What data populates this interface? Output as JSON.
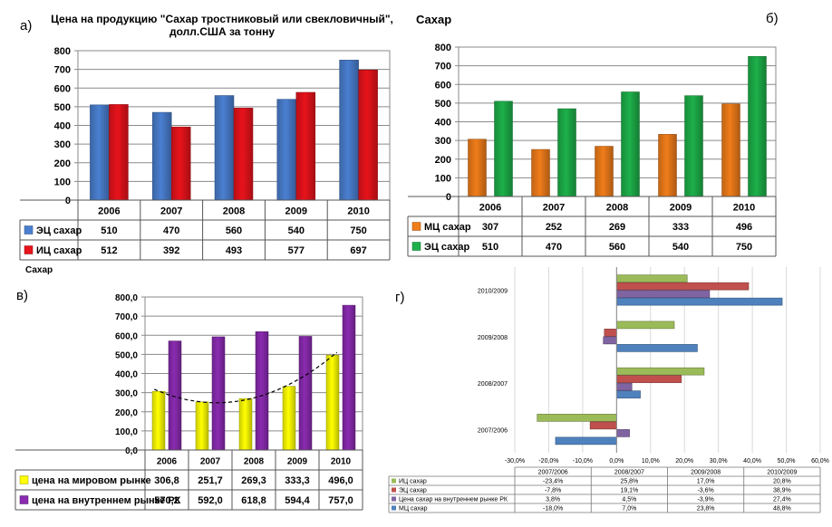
{
  "labels": {
    "a": "а)",
    "b": "б)",
    "v": "в)",
    "g": "г)"
  },
  "chart_data": [
    {
      "id": "a",
      "type": "bar",
      "title_line1": "Цена на продукцию  \"Сахар тростниковый  или свекловичный\",",
      "title_line2": "долл.США за тонну",
      "xlabel": "",
      "ylabel": "",
      "categories": [
        "2006",
        "2007",
        "2008",
        "2009",
        "2010"
      ],
      "ylim": [
        0,
        800
      ],
      "yticks": [
        0,
        100,
        200,
        300,
        400,
        500,
        600,
        700,
        800
      ],
      "ytick_labels": [
        "0",
        "100",
        "200",
        "300",
        "400",
        "500",
        "600",
        "700",
        "800"
      ],
      "grid": true,
      "legend": "data-table",
      "series": [
        {
          "name": "ЭЦ сахар",
          "color": "#4A7FD0",
          "values": [
            510,
            470,
            560,
            540,
            750
          ],
          "labels": [
            "510",
            "470",
            "560",
            "540",
            "750"
          ]
        },
        {
          "name": "ИЦ сахар",
          "color": "#E8131B",
          "values": [
            512,
            392,
            493,
            577,
            697
          ],
          "labels": [
            "512",
            "392",
            "493",
            "577",
            "697"
          ]
        }
      ]
    },
    {
      "id": "b",
      "type": "bar",
      "title_line1": "Сахар",
      "xlabel": "",
      "ylabel": "",
      "categories": [
        "2006",
        "2007",
        "2008",
        "2009",
        "2010"
      ],
      "ylim": [
        0,
        800
      ],
      "yticks": [
        0,
        100,
        200,
        300,
        400,
        500,
        600,
        700,
        800
      ],
      "ytick_labels": [
        "0",
        "100",
        "200",
        "300",
        "400",
        "500",
        "600",
        "700",
        "800"
      ],
      "grid": true,
      "legend": "data-table",
      "series": [
        {
          "name": "МЦ сахар",
          "color": "#F07D1A",
          "values": [
            307,
            252,
            269,
            333,
            496
          ],
          "labels": [
            "307",
            "252",
            "269",
            "333",
            "496"
          ]
        },
        {
          "name": "ЭЦ сахар",
          "color": "#1DB04A",
          "values": [
            510,
            470,
            560,
            540,
            750
          ],
          "labels": [
            "510",
            "470",
            "560",
            "540",
            "750"
          ]
        }
      ]
    },
    {
      "id": "v",
      "type": "bar",
      "title_line1": "Сахар",
      "xlabel": "",
      "ylabel": "",
      "categories": [
        "2006",
        "2007",
        "2008",
        "2009",
        "2010"
      ],
      "ylim": [
        0,
        800
      ],
      "yticks": [
        0,
        100,
        200,
        300,
        400,
        500,
        600,
        700,
        800
      ],
      "ytick_labels": [
        "0,0",
        "100,0",
        "200,0",
        "300,0",
        "400,0",
        "500,0",
        "600,0",
        "700,0",
        "800,0"
      ],
      "grid": true,
      "legend": "data-table",
      "trendline": {
        "series": "цена на мировом рынке",
        "style": "dashed polynomial"
      },
      "series": [
        {
          "name": "цена на мировом рынке",
          "color": "#FFFF00",
          "values": [
            306.8,
            251.7,
            269.3,
            333.3,
            496.0
          ],
          "labels": [
            "306,8",
            "251,7",
            "269,3",
            "333,3",
            "496,0"
          ]
        },
        {
          "name": "цена на внутреннем рынке РК",
          "color": "#8A2BB0",
          "values": [
            570.2,
            592.0,
            618.8,
            594.4,
            757.0
          ],
          "labels": [
            "570,2",
            "592,0",
            "618,8",
            "594,4",
            "757,0"
          ]
        }
      ]
    },
    {
      "id": "g",
      "type": "bar",
      "orientation": "horizontal",
      "xlabel": "",
      "ylabel": "",
      "categories": [
        "2007/2006",
        "2008/2007",
        "2009/2008",
        "2010/2009"
      ],
      "xlim": [
        -30,
        60
      ],
      "xticks": [
        -30,
        -20,
        -10,
        0,
        10,
        20,
        30,
        40,
        50,
        60
      ],
      "xtick_labels": [
        "-30,0%",
        "-20,0%",
        "-10,0%",
        "0,0%",
        "10,0%",
        "20,0%",
        "30,0%",
        "40,0%",
        "50,0%",
        "60,0%"
      ],
      "grid": true,
      "legend": "data-table",
      "series": [
        {
          "name": "ИЦ сахар",
          "color": "#9BBB59",
          "values": [
            -23.4,
            25.8,
            17.0,
            20.8
          ],
          "labels": [
            "-23,4%",
            "25,8%",
            "17,0%",
            "20,8%"
          ]
        },
        {
          "name": "ЭЦ сахар",
          "color": "#C0504D",
          "values": [
            -7.8,
            19.1,
            -3.6,
            38.9
          ],
          "labels": [
            "-7,8%",
            "19,1%",
            "-3,6%",
            "38,9%"
          ]
        },
        {
          "name": "Цена сахар на внутреннем рынке РК",
          "color": "#8064A2",
          "values": [
            3.8,
            4.5,
            -3.9,
            27.4
          ],
          "labels": [
            "3,8%",
            "4,5%",
            "-3,9%",
            "27,4%"
          ]
        },
        {
          "name": "МЦ сахар",
          "color": "#4F81BD",
          "values": [
            -18.0,
            7.0,
            23.8,
            48.8
          ],
          "labels": [
            "-18,0%",
            "7,0%",
            "23,8%",
            "48,8%"
          ]
        }
      ]
    }
  ]
}
